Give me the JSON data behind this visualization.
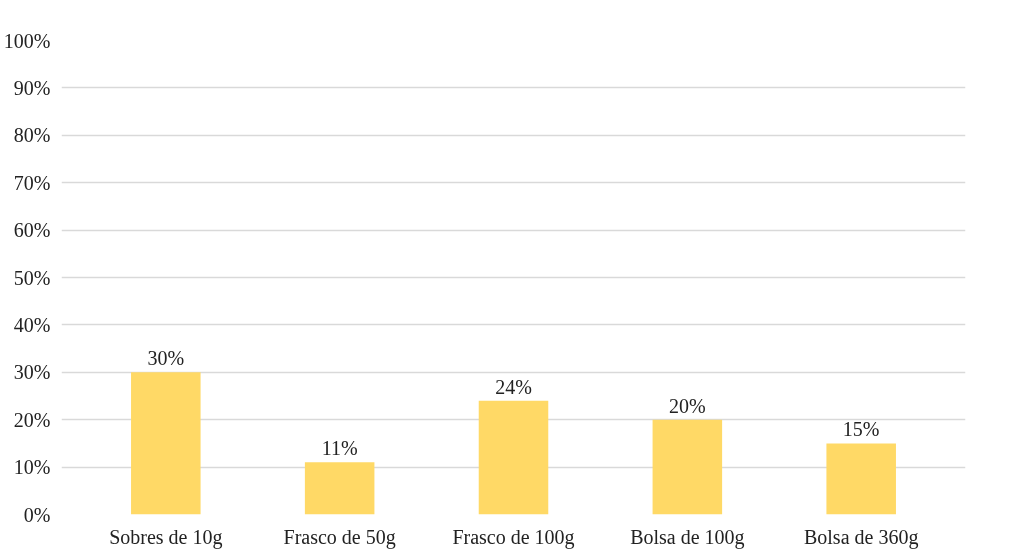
{
  "chart_data": {
    "type": "bar",
    "categories": [
      "Sobres de 10g",
      "Frasco de 50g",
      "Frasco de 100g",
      "Bolsa de 100g",
      "Bolsa de 360g"
    ],
    "values": [
      30,
      11,
      24,
      20,
      15
    ],
    "value_labels": [
      "30%",
      "11%",
      "24%",
      "20%",
      "15%"
    ],
    "color": "#ffd966",
    "ylim": [
      0,
      100
    ],
    "yticks": [
      {
        "value": 0,
        "label": "0%"
      },
      {
        "value": 10,
        "label": "10%"
      },
      {
        "value": 20,
        "label": "20%"
      },
      {
        "value": 30,
        "label": "30%"
      },
      {
        "value": 40,
        "label": "40%"
      },
      {
        "value": 50,
        "label": "50%"
      },
      {
        "value": 60,
        "label": "60%"
      },
      {
        "value": 70,
        "label": "70%"
      },
      {
        "value": 80,
        "label": "80%"
      },
      {
        "value": 90,
        "label": "90%"
      },
      {
        "value": 100,
        "label": "100%"
      }
    ],
    "grid": "y"
  }
}
